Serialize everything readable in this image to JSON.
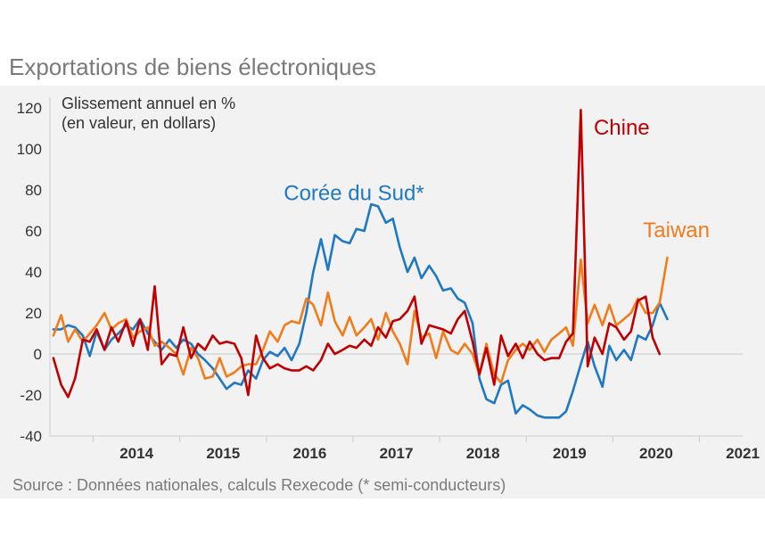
{
  "chart_data": {
    "type": "line",
    "title": "Exportations de biens électroniques",
    "subtitle_lines": [
      "Glissement annuel en %",
      "(en valeur, en dollars)"
    ],
    "source": "Source : Données nationales, calculs Rexecode (* semi-conducteurs)",
    "xlim": [
      2013.5,
      2021.5
    ],
    "ylim": [
      -40,
      120
    ],
    "y_ticks": [
      "120",
      "100",
      "80",
      "60",
      "40",
      "20",
      "0",
      "-20",
      "-40"
    ],
    "x_ticks": [
      "2014",
      "2015",
      "2016",
      "2017",
      "2018",
      "2019",
      "2020",
      "2021"
    ],
    "series": [
      {
        "name": "Corée du Sud*",
        "color": "#1f78c1",
        "x": [
          2013.54,
          2013.63,
          2013.71,
          2013.79,
          2013.88,
          2013.96,
          2014.04,
          2014.13,
          2014.21,
          2014.29,
          2014.38,
          2014.46,
          2014.54,
          2014.63,
          2014.71,
          2014.79,
          2014.88,
          2014.96,
          2015.04,
          2015.13,
          2015.21,
          2015.29,
          2015.38,
          2015.46,
          2015.54,
          2015.63,
          2015.71,
          2015.79,
          2015.88,
          2015.96,
          2016.04,
          2016.13,
          2016.21,
          2016.29,
          2016.38,
          2016.46,
          2016.54,
          2016.63,
          2016.71,
          2016.79,
          2016.88,
          2016.96,
          2017.04,
          2017.13,
          2017.21,
          2017.29,
          2017.38,
          2017.46,
          2017.54,
          2017.63,
          2017.71,
          2017.79,
          2017.88,
          2017.96,
          2018.04,
          2018.13,
          2018.21,
          2018.29,
          2018.38,
          2018.46,
          2018.54,
          2018.63,
          2018.71,
          2018.79,
          2018.88,
          2018.96,
          2019.04,
          2019.13,
          2019.21,
          2019.29,
          2019.38,
          2019.46,
          2019.54,
          2019.63,
          2019.71,
          2019.79,
          2019.88,
          2019.96,
          2020.04,
          2020.13,
          2020.21,
          2020.29,
          2020.38,
          2020.46,
          2020.54,
          2020.63
        ],
        "values": [
          12,
          12,
          14,
          13,
          9,
          -1,
          11,
          2,
          7,
          10,
          14,
          12,
          17,
          10,
          6,
          2,
          7,
          3,
          7,
          5,
          0,
          -3,
          -7,
          -12,
          -17,
          -14,
          -15,
          -8,
          -12,
          -3,
          1,
          -1,
          3,
          -3,
          5,
          20,
          40,
          56,
          41,
          58,
          55,
          54,
          61,
          60,
          73,
          72,
          64,
          66,
          52,
          40,
          47,
          37,
          43,
          38,
          31,
          32,
          27,
          25,
          15,
          -12,
          -22,
          -24,
          -15,
          -13,
          -29,
          -25,
          -27,
          -30,
          -31,
          -31,
          -31,
          -28,
          -18,
          -5,
          6,
          -6,
          -16,
          4,
          -3,
          2,
          -3,
          9,
          7,
          14,
          25,
          17
        ],
        "label_pos": [
          2016.2,
          75
        ]
      },
      {
        "name": "Chine",
        "color": "#c00000",
        "x": [
          2013.54,
          2013.63,
          2013.71,
          2013.79,
          2013.88,
          2013.96,
          2014.04,
          2014.13,
          2014.21,
          2014.29,
          2014.38,
          2014.46,
          2014.54,
          2014.63,
          2014.71,
          2014.79,
          2014.88,
          2014.96,
          2015.04,
          2015.13,
          2015.21,
          2015.29,
          2015.38,
          2015.46,
          2015.54,
          2015.63,
          2015.71,
          2015.79,
          2015.88,
          2015.96,
          2016.04,
          2016.13,
          2016.21,
          2016.29,
          2016.38,
          2016.46,
          2016.54,
          2016.63,
          2016.71,
          2016.79,
          2016.88,
          2016.96,
          2017.04,
          2017.13,
          2017.21,
          2017.29,
          2017.38,
          2017.46,
          2017.54,
          2017.63,
          2017.71,
          2017.79,
          2017.88,
          2017.96,
          2018.04,
          2018.13,
          2018.21,
          2018.29,
          2018.38,
          2018.46,
          2018.54,
          2018.63,
          2018.71,
          2018.79,
          2018.88,
          2018.96,
          2019.04,
          2019.13,
          2019.21,
          2019.29,
          2019.38,
          2019.46,
          2019.54,
          2019.63,
          2019.71,
          2019.79,
          2019.88,
          2019.96,
          2020.04,
          2020.13,
          2020.21,
          2020.29,
          2020.38,
          2020.46,
          2020.54
        ],
        "values": [
          -2,
          -15,
          -21,
          -12,
          7,
          6,
          12,
          2,
          13,
          6,
          16,
          4,
          17,
          2,
          33,
          -5,
          0,
          -1,
          13,
          -2,
          5,
          2,
          9,
          5,
          6,
          5,
          -2,
          -20,
          9,
          -2,
          -7,
          -5,
          -7,
          -8,
          -8,
          -6,
          -8,
          -3,
          5,
          0,
          2,
          4,
          3,
          7,
          4,
          13,
          8,
          16,
          17,
          21,
          28,
          5,
          14,
          13,
          12,
          10,
          17,
          21,
          6,
          -10,
          3,
          -15,
          9,
          -1,
          5,
          -2,
          6,
          0,
          -3,
          -2,
          -2,
          6,
          10,
          119,
          -6,
          8,
          0,
          15,
          13,
          7,
          11,
          26,
          28,
          8,
          0
        ],
        "label_pos": [
          2019.78,
          107
        ]
      },
      {
        "name": "Taiwan",
        "color": "#f07c1b",
        "x": [
          2013.54,
          2013.63,
          2013.71,
          2013.79,
          2013.88,
          2013.96,
          2014.04,
          2014.13,
          2014.21,
          2014.29,
          2014.38,
          2014.46,
          2014.54,
          2014.63,
          2014.71,
          2014.79,
          2014.88,
          2014.96,
          2015.04,
          2015.13,
          2015.21,
          2015.29,
          2015.38,
          2015.46,
          2015.54,
          2015.63,
          2015.71,
          2015.79,
          2015.88,
          2015.96,
          2016.04,
          2016.13,
          2016.21,
          2016.29,
          2016.38,
          2016.46,
          2016.54,
          2016.63,
          2016.71,
          2016.79,
          2016.88,
          2016.96,
          2017.04,
          2017.13,
          2017.21,
          2017.29,
          2017.38,
          2017.46,
          2017.54,
          2017.63,
          2017.71,
          2017.79,
          2017.88,
          2017.96,
          2018.04,
          2018.13,
          2018.21,
          2018.29,
          2018.38,
          2018.46,
          2018.54,
          2018.63,
          2018.71,
          2018.79,
          2018.88,
          2018.96,
          2019.04,
          2019.13,
          2019.21,
          2019.29,
          2019.38,
          2019.46,
          2019.54,
          2019.63,
          2019.71,
          2019.79,
          2019.88,
          2019.96,
          2020.04,
          2020.13,
          2020.21,
          2020.29,
          2020.38,
          2020.46,
          2020.54,
          2020.63
        ],
        "values": [
          9,
          19,
          6,
          12,
          6,
          10,
          14,
          20,
          12,
          15,
          17,
          8,
          11,
          13,
          4,
          6,
          3,
          0,
          -10,
          3,
          -2,
          -12,
          -11,
          -2,
          -11,
          -9,
          -6,
          -5,
          -5,
          2,
          11,
          6,
          14,
          16,
          15,
          27,
          24,
          14,
          30,
          16,
          9,
          18,
          9,
          13,
          17,
          7,
          20,
          11,
          5,
          -5,
          21,
          8,
          10,
          -2,
          11,
          2,
          0,
          5,
          0,
          -10,
          5,
          -10,
          -14,
          -3,
          2,
          5,
          2,
          7,
          1,
          7,
          10,
          13,
          4,
          46,
          15,
          24,
          14,
          24,
          14,
          17,
          20,
          27,
          20,
          20,
          25,
          47
        ],
        "label_pos": [
          2020.35,
          57
        ]
      }
    ]
  }
}
